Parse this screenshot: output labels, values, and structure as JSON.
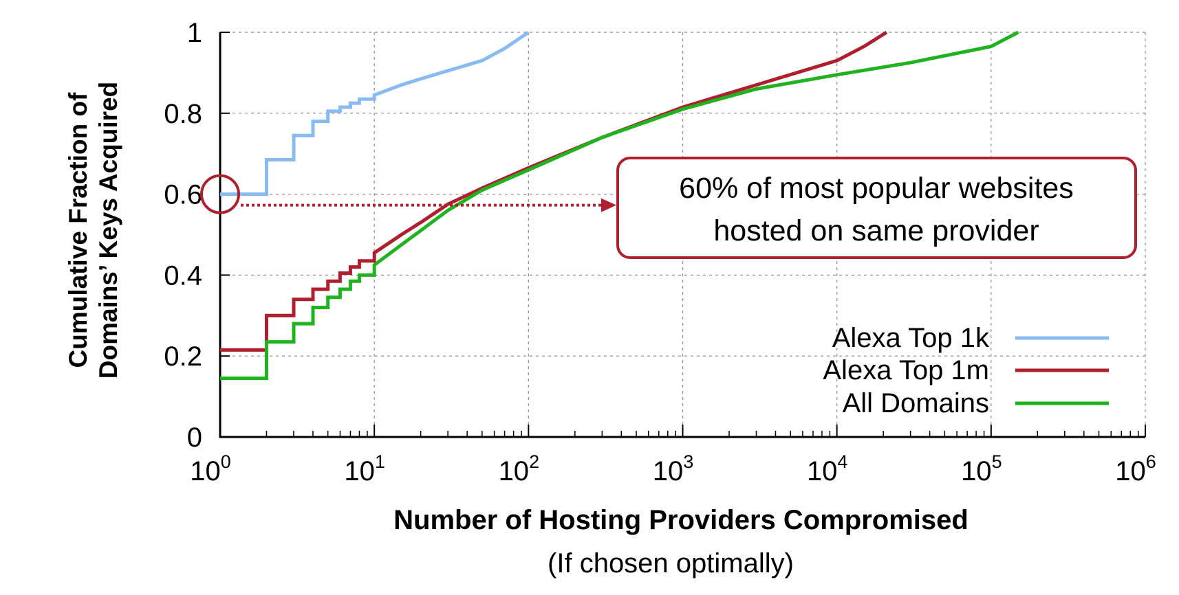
{
  "chart_data": {
    "type": "line",
    "xlabel": "Number of Hosting Providers Compromised",
    "xlabel_sub": "(If chosen optimally)",
    "ylabel_line1": "Cumulative Fraction of",
    "ylabel_line2": "Domains’ Keys Acquired",
    "x_scale": "log",
    "xlim": [
      1,
      1000000
    ],
    "ylim": [
      0,
      1
    ],
    "grid": true,
    "legend_position": "bottom-right",
    "x_ticks": [
      {
        "base": "10",
        "exp": "0",
        "value": 1
      },
      {
        "base": "10",
        "exp": "1",
        "value": 10
      },
      {
        "base": "10",
        "exp": "2",
        "value": 100
      },
      {
        "base": "10",
        "exp": "3",
        "value": 1000
      },
      {
        "base": "10",
        "exp": "4",
        "value": 10000
      },
      {
        "base": "10",
        "exp": "5",
        "value": 100000
      },
      {
        "base": "10",
        "exp": "6",
        "value": 1000000
      }
    ],
    "y_ticks": [
      {
        "label": "0",
        "value": 0
      },
      {
        "label": "0.2",
        "value": 0.2
      },
      {
        "label": "0.4",
        "value": 0.4
      },
      {
        "label": "0.6",
        "value": 0.6
      },
      {
        "label": "0.8",
        "value": 0.8
      },
      {
        "label": "1",
        "value": 1
      }
    ],
    "series": [
      {
        "name": "Alexa Top 1k",
        "color": "#88bbf2",
        "x": [
          1,
          2,
          3,
          4,
          5,
          6,
          7,
          8,
          10,
          15,
          20,
          30,
          50,
          70,
          100
        ],
        "y": [
          0.6,
          0.685,
          0.745,
          0.78,
          0.805,
          0.815,
          0.825,
          0.835,
          0.845,
          0.87,
          0.885,
          0.905,
          0.93,
          0.96,
          1.0
        ]
      },
      {
        "name": "Alexa Top 1m",
        "color": "#b01f2e",
        "x": [
          1,
          2,
          3,
          4,
          5,
          6,
          7,
          8,
          10,
          15,
          20,
          30,
          50,
          100,
          300,
          1000,
          3000,
          10000,
          15000,
          21000
        ],
        "y": [
          0.215,
          0.3,
          0.34,
          0.365,
          0.385,
          0.405,
          0.42,
          0.435,
          0.455,
          0.5,
          0.53,
          0.575,
          0.615,
          0.665,
          0.74,
          0.815,
          0.87,
          0.93,
          0.965,
          1.0
        ]
      },
      {
        "name": "All Domains",
        "color": "#1fb31f",
        "x": [
          1,
          2,
          3,
          4,
          5,
          6,
          7,
          8,
          10,
          15,
          20,
          30,
          50,
          100,
          300,
          1000,
          3000,
          10000,
          30000,
          100000,
          150000
        ],
        "y": [
          0.145,
          0.235,
          0.28,
          0.32,
          0.345,
          0.365,
          0.385,
          0.4,
          0.425,
          0.475,
          0.51,
          0.56,
          0.61,
          0.66,
          0.74,
          0.81,
          0.86,
          0.895,
          0.925,
          0.965,
          1.0
        ]
      }
    ],
    "annotation": {
      "line1": "60% of most popular websites",
      "line2": "hosted on same provider",
      "color": "#b01f2e",
      "point_x": 1,
      "point_y": 0.6
    }
  }
}
